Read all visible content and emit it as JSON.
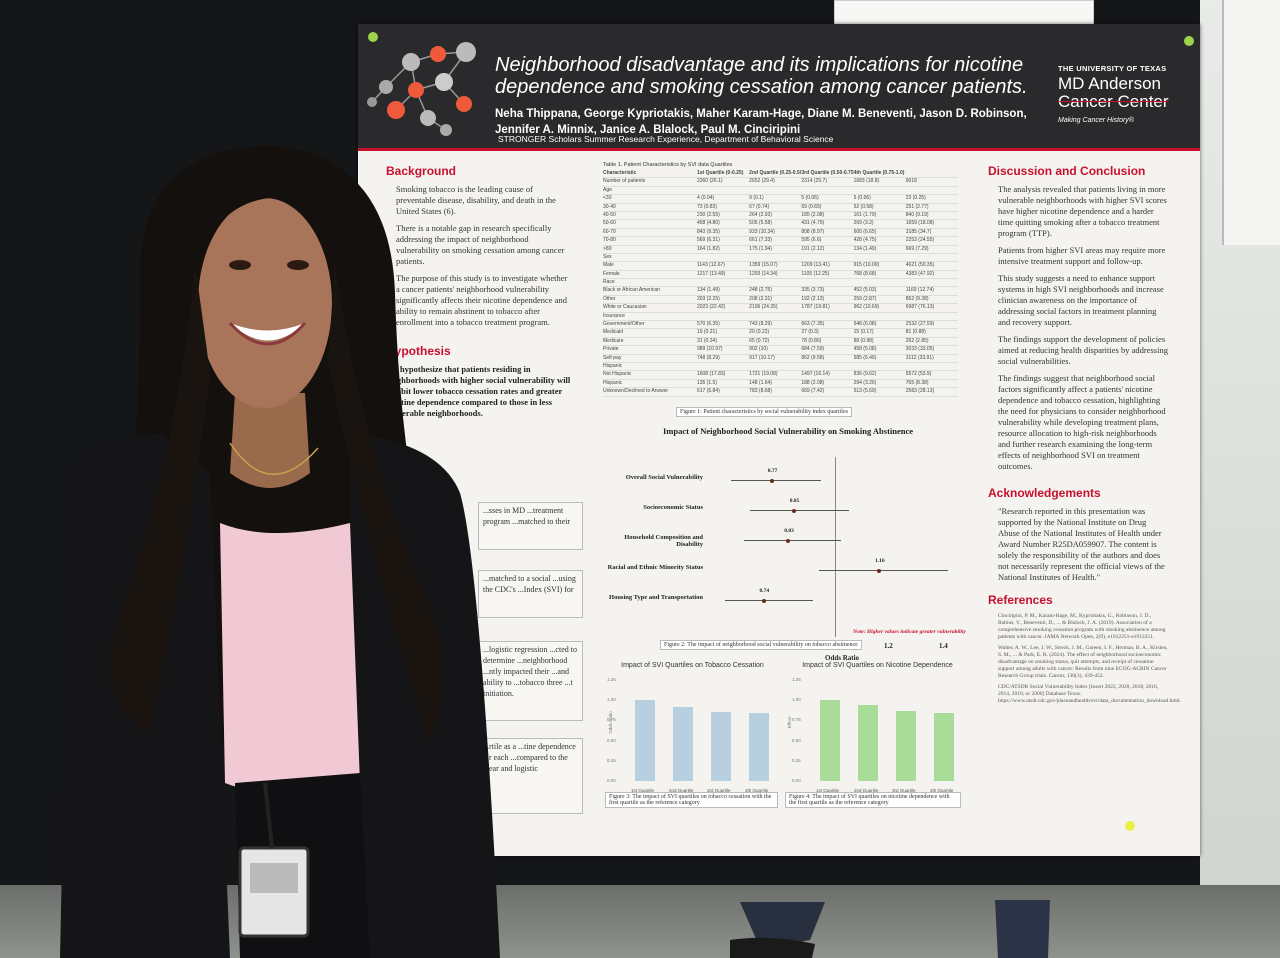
{
  "poster": {
    "title": "Neighborhood disadvantage and its implications for nicotine dependence and smoking cessation among cancer patients.",
    "authors": "Neha Thippana, George Kypriotakis, Maher Karam-Hage, Diane M. Beneventi, Jason D. Robinson, Jennifer A. Minnix, Janice A. Blalock, Paul M. Cinciripini",
    "program": "STRONGER Scholars Summer Research Experience, Department of Behavioral Science",
    "logo": {
      "university": "THE UNIVERSITY OF TEXAS",
      "name_line1": "MD Anderson",
      "name_line2": "Cancer Center",
      "tagline": "Making Cancer History®"
    },
    "accent_color": "#c8102e",
    "background": {
      "heading": "Background",
      "bullets": [
        "Smoking tobacco is the leading cause of preventable disease, disability, and death in the United States (6).",
        "There is a notable gap in research specifically addressing the impact of neighborhood vulnerability on smoking cessation among cancer patients.",
        "The purpose of this study is to investigate whether a cancer patients' neighborhood vulnerability significantly affects their nicotine dependence and ability to remain abstinent to tobacco after enrollment into a tobacco treatment program."
      ]
    },
    "hypothesis": {
      "heading": "Hypothesis",
      "text": "We hypothesize that patients residing in neighborhoods with higher social vulnerability will exhibit lower tobacco cessation rates and greater nicotine dependence compared to those in less vulnerable neighborhoods."
    },
    "methods_fragments": [
      "...sses in MD ...treatment program ...matched to their",
      "...matched to a social ...using the CDC's ...Index (SVI) for",
      "...logistic regression ...cted to determine ...neighborhood ...ntly impacted their ...and ability to ...tobacco three ...t initiation.",
      "...rtile as a ...tine dependence ...r each ...compared to the ...ear and logistic"
    ],
    "table": {
      "title": "Table 1. Patient Characteristics by SVI data Quartiles",
      "headers": [
        "Characteristic",
        "1st Quartile (0-0.25)",
        "2nd Quartile (0.25-0.50)",
        "3rd Quartile (0.50-0.75)",
        "4th Quartile (0.75-1.0)",
        ""
      ],
      "rows": [
        [
          "Number of patients",
          "2360 (26.1)",
          "2652 (29.4)",
          "2314 (25.7)",
          "1683 (18.8)",
          "9018"
        ],
        [
          "Age",
          "",
          "",
          "",
          "",
          ""
        ],
        [
          "<30",
          "4 (0.04)",
          "9 (0.1)",
          "5 (0.06)",
          "5 (0.06)",
          "23 (0.25)"
        ],
        [
          "30-40",
          "73 (0.83)",
          "67 (0.74)",
          "59 (0.65)",
          "52 (0.58)",
          "251 (2.77)"
        ],
        [
          "40-50",
          "230 (2.55)",
          "264 (2.93)",
          "185 (2.08)",
          "161 (1.79)",
          "840 (9.19)"
        ],
        [
          "50-60",
          "458 (4.80)",
          "505 (5.58)",
          "431 (4.79)",
          "269 (3.2)",
          "1659 (18.08)"
        ],
        [
          "60-70",
          "843 (9.35)",
          "933 (10.34)",
          "808 (8.97)",
          "600 (6.65)",
          "3185 (34.7)"
        ],
        [
          "70-80",
          "569 (6.31)",
          "661 (7.33)",
          "595 (6.6)",
          "428 (4.75)",
          "2253 (24.55)"
        ],
        [
          ">80",
          "164 (1.82)",
          "175 (1.94)",
          "191 (2.12)",
          "134 (1.49)",
          "669 (7.29)"
        ],
        [
          "Sex",
          "",
          "",
          "",
          "",
          ""
        ],
        [
          "Male",
          "1143 (12.67)",
          "1359 (15.07)",
          "1209 (13.41)",
          "915 (10.09)",
          "4621 (50.35)"
        ],
        [
          "Female",
          "1217 (13.49)",
          "1293 (14.34)",
          "1105 (12.25)",
          "768 (8.68)",
          "4383 (47.92)"
        ],
        [
          "Race",
          "",
          "",
          "",
          "",
          ""
        ],
        [
          "Black or African American",
          "134 (1.49)",
          "248 (2.75)",
          "335 (3.73)",
          "452 (5.03)",
          "1169 (12.74)"
        ],
        [
          "Other",
          "203 (2.25)",
          "208 (2.31)",
          "192 (2.13)",
          "259 (2.87)",
          "862 (9.38)"
        ],
        [
          "White or Caucasian",
          "2023 (22.42)",
          "2196 (24.35)",
          "1787 (19.81)",
          "962 (10.69)",
          "6987 (76.13)"
        ],
        [
          "Insurance",
          "",
          "",
          "",
          "",
          ""
        ],
        [
          "Government/Other",
          "570 (6.35)",
          "743 (8.29)",
          "663 (7.35)",
          "548 (6.08)",
          "2532 (27.59)"
        ],
        [
          "Medicaid",
          "19 (0.21)",
          "20 (0.22)",
          "27 (0.3)",
          "15 (0.17)",
          "81 (0.88)"
        ],
        [
          "Medicare",
          "31 (0.34)",
          "65 (0.72)",
          "78 (0.86)",
          "88 (0.98)",
          "262 (2.85)"
        ],
        [
          "Private",
          "989 (10.97)",
          "902 (10)",
          "684 (7.59)",
          "458 (5.08)",
          "3033 (33.05)"
        ],
        [
          "Self-pay",
          "748 (8.29)",
          "917 (10.17)",
          "862 (9.58)",
          "585 (6.49)",
          "3112 (33.91)"
        ],
        [
          "Hispanic",
          "",
          "",
          "",
          "",
          ""
        ],
        [
          "Not Hispanic",
          "1608 (17.83)",
          "1721 (19.08)",
          "1497 (16.14)",
          "836 (9.62)",
          "5572 (53.9)"
        ],
        [
          "Hispanic",
          "135 (1.5)",
          "148 (1.64)",
          "188 (2.08)",
          "294 (3.26)",
          "765 (8.38)"
        ],
        [
          "Unknown/Declined to Answer",
          "617 (6.84)",
          "783 (8.68)",
          "669 (7.42)",
          "513 (5.69)",
          "2583 (28.13)"
        ]
      ],
      "caption": "Figure 1: Patient characteristics by social vulnerability index quartiles"
    },
    "forest": {
      "title": "Impact of Neighborhood Social Vulnerability on Smoking Abstinence",
      "rows": [
        {
          "label": "Overall Social Vulnerability",
          "or": 0.77,
          "lo": 0.62,
          "hi": 0.95,
          "text": "0.77"
        },
        {
          "label": "Socioeconomic Status",
          "or": 0.85,
          "lo": 0.69,
          "hi": 1.05,
          "text": "0.85"
        },
        {
          "label": "Household Composition and Disability",
          "or": 0.83,
          "lo": 0.67,
          "hi": 1.02,
          "text": "0.83"
        },
        {
          "label": "Racial and Ethnic Minority Status",
          "or": 1.16,
          "lo": 0.94,
          "hi": 1.41,
          "text": "1.16"
        },
        {
          "label": "Housing Type and Transportation",
          "or": 0.74,
          "lo": 0.6,
          "hi": 0.92,
          "text": "0.74"
        }
      ],
      "ticks": [
        "0.6",
        "0.8",
        "1.0",
        "1.2",
        "1.4"
      ],
      "xlabel": "Odds Ratio",
      "note": "Note: Higher values indicate greater vulnerability",
      "caption": "Figure 2: The impact of neighborhood social vulnerability on tobacco abstinence"
    },
    "bar_cessation": {
      "title": "Impact of SVI Quartiles on Tobacco Cessation",
      "ylabel": "Odds Ratio",
      "categories": [
        "1st Quartile",
        "2nd Quartile",
        "3rd Quartile",
        "4th Quartile"
      ],
      "values": [
        1.0,
        0.92,
        0.85,
        0.84
      ],
      "ylim": [
        0,
        1.25
      ],
      "yticks": [
        "1.25",
        "1.00",
        "0.75",
        "0.50",
        "0.25",
        "0.00"
      ],
      "color": "#b8cfe0",
      "caption": "Figure 3: The impact of SVI quartiles on tobacco cessation with the first quartile as the reference category"
    },
    "bar_dependence": {
      "title": "Impact of SVI Quartiles on Nicotine Dependence",
      "ylabel": "Effect",
      "categories": [
        "1st Quartile",
        "2nd Quartile",
        "3rd Quartile",
        "4th Quartile"
      ],
      "values": [
        1.0,
        0.94,
        0.87,
        0.84
      ],
      "ylim": [
        0,
        1.25
      ],
      "yticks": [
        "1.25",
        "1.00",
        "0.75",
        "0.50",
        "0.25",
        "0.00"
      ],
      "color": "#a8dc98",
      "caption": "Figure 4: The impact of SVI quartiles on nicotine dependence with the first quartile as the reference category"
    },
    "discussion": {
      "heading": "Discussion and Conclusion",
      "bullets": [
        "The analysis revealed that patients living in more vulnerable neighborhoods with higher SVI scores have higher nicotine dependence and a harder time quitting smoking after a tobacco treatment program (TTP).",
        "Patients from higher SVI areas may require more intensive treatment support and follow-up.",
        "This study suggests a need to enhance support systems in high SVI neighborhoods and increase clinician awareness on the importance of addressing social factors in treatment planning and recovery support.",
        "The findings support the development of policies aimed at reducing health disparities by addressing social vulnerabilities.",
        "The findings suggest that neighborhood social factors significantly affect a patients' nicotine dependence and tobacco cessation, highlighting the need for physicians to consider neighborhood vulnerability while developing treatment plans, resource allocation to high-risk neighborhoods and further research examining the long-term effects of neighborhood SVI on treatment outcomes."
      ]
    },
    "acknowledgements": {
      "heading": "Acknowledgements",
      "text": "\"Research reported in this presentation was supported by the National Institute on Drug Abuse of the National Institutes of Health under Award Number R25DA059907. The content is solely the responsibility of the authors and does not necessarily represent the official views of the National Institutes of Health.\""
    },
    "references": {
      "heading": "References",
      "items": [
        "Cinciripini, P. M., Karam-Hage, M., Kypriotakis, G., Robinson, J. D., Rabius, V., Beneventi, D., ... & Blalock, J. A. (2019). Association of a comprehensive smoking cessation program with smoking abstinence among patients with cancer. JAMA Network Open, 2(9), e1912251-e1912251.",
        "Walter, A. W., Lee, J. W., Streck, J. M., Gareen, I. F., Herman, B. A., Kirsten, S. M., ... & Park, E. R. (2024). The effect of neighborhood socioeconomic disadvantage on smoking status, quit attempts, and receipt of cessation support among adults with cancer: Results from nine ECOG-ACRIN Cancer Research Group trials. Cancer, 130(3), 439-452.",
        "CDC/ATSDR Social Vulnerability Index [Insert 2022, 2020, 2018, 2016, 2014, 2010, or 2000] Database Texas. https://www.atsdr.cdc.gov/placeandhealth/svi/data_documentation_download.html."
      ]
    }
  }
}
